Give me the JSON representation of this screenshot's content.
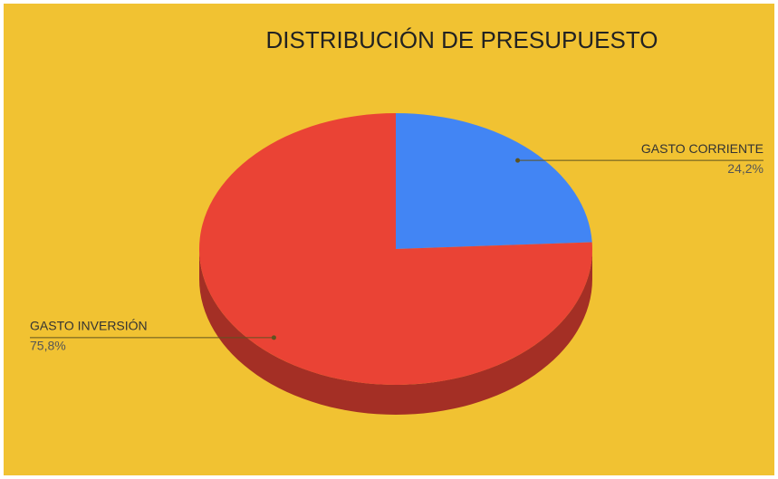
{
  "chart_data": {
    "type": "pie3d",
    "title": "DISTRIBUCIÓN DE PRESUPUESTO",
    "categories": [
      "GASTO CORRIENTE",
      "GASTO INVERSIÓN"
    ],
    "values": [
      24.2,
      75.8
    ],
    "value_labels": [
      "24,2%",
      "75,8%"
    ],
    "colors": [
      "#4285f4",
      "#ea4335"
    ],
    "background": "#f1c232"
  }
}
